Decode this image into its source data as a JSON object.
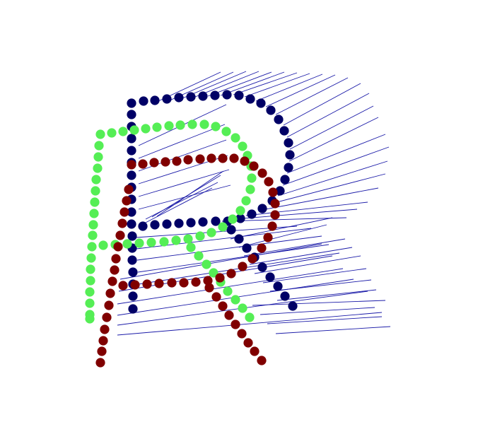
{
  "figure": {
    "description_visible_text": "",
    "colors": {
      "background": "#ffffff",
      "navy": "#000066",
      "green": "#55ee55",
      "darkred": "#800000",
      "lines": "#1a1aa8"
    }
  },
  "icons": [
    "navy-letter-r-marker-path",
    "green-letter-r-marker-path",
    "red-letter-r-marker-path",
    "correspondence-lines"
  ]
}
